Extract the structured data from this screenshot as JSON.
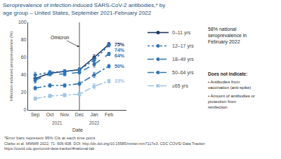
{
  "chart_data": {
    "type": "line",
    "title": "Seroprevalence of infection-induced SARS-CoV-2 antibodies,* by\nage group – United States, September 2021-February 2022",
    "x_label": "Date",
    "y_label": "Infection-induced seroprevalence (%)",
    "categories": [
      "Sep",
      "Oct",
      "Nov",
      "Dec",
      "Jan",
      "Feb"
    ],
    "year_labels": [
      {
        "text": "2021",
        "categories": [
          "Sep",
          "Oct",
          "Nov",
          "Dec"
        ]
      },
      {
        "text": "2022",
        "categories": [
          "Jan"
        ]
      }
    ],
    "marker_line": {
      "text": "Omicron",
      "category": "Dec"
    },
    "ylim": [
      0,
      100
    ],
    "yticks": [
      0,
      20,
      40,
      60,
      80,
      100
    ],
    "grid": false,
    "legend": "right",
    "series": [
      {
        "name": "0–11 yrs",
        "color": "#1F3864",
        "line_style": "solid",
        "marker": "circle",
        "values": [
          36,
          42,
          44,
          46,
          60,
          75
        ],
        "errors": [
          4,
          2,
          2,
          2,
          3,
          2
        ],
        "value_labels": [
          null,
          null,
          null,
          null,
          null,
          "75%"
        ]
      },
      {
        "name": "12–17 yrs",
        "color": "#2E75B6",
        "line_style": "dotted",
        "marker": "circle",
        "values": [
          40,
          43,
          44,
          46,
          57,
          74
        ],
        "errors": [
          3,
          2,
          2,
          2,
          3,
          2
        ],
        "value_labels": [
          null,
          null,
          null,
          null,
          null,
          "74%"
        ]
      },
      {
        "name": "18–49 yrs",
        "color": "#2E75B6",
        "line_style": "dashed",
        "marker": "circle",
        "values": [
          34,
          41,
          41,
          43,
          52,
          64
        ],
        "errors": [
          3,
          2,
          2,
          2,
          3,
          2
        ],
        "value_labels": [
          null,
          null,
          null,
          null,
          null,
          "64%"
        ]
      },
      {
        "name": "50–64 yrs",
        "color": "#2E75B6",
        "line_style": "dashdot",
        "marker": "circle",
        "values": [
          25,
          28,
          28,
          30,
          40,
          50
        ],
        "errors": [
          2,
          2,
          2,
          2,
          3,
          2
        ],
        "value_labels": [
          null,
          null,
          null,
          null,
          null,
          "50%"
        ]
      },
      {
        "name": "≥65 yrs",
        "color": "#9DC3E6",
        "line_style": "dashdot",
        "marker": "x",
        "values": [
          13,
          16,
          17,
          18,
          27,
          33
        ],
        "errors": [
          2,
          2,
          2,
          2,
          3,
          2
        ],
        "value_labels": [
          null,
          null,
          null,
          null,
          null,
          "33%"
        ]
      }
    ],
    "side_note": "58% national\nseroprevalence in\nFebruary 2022",
    "side_list": {
      "heading": "Does not indicate:",
      "items": [
        "• Antibodies from\nvaccination (anti-spike)",
        "• Amount of antibodies or\nprotection from\nreinfection"
      ]
    },
    "footnote": "*Error bars represent 95% CIs at each time point",
    "source": "Clarke et al. MMWR 2022; 71: 606-608. DOI: http://dx.doi.org/10.15585/mmwr.mm7117e3. CDC COVID Data Tracker: https://covid.cdc.gov/covid-data-tracker/#national-lab"
  }
}
